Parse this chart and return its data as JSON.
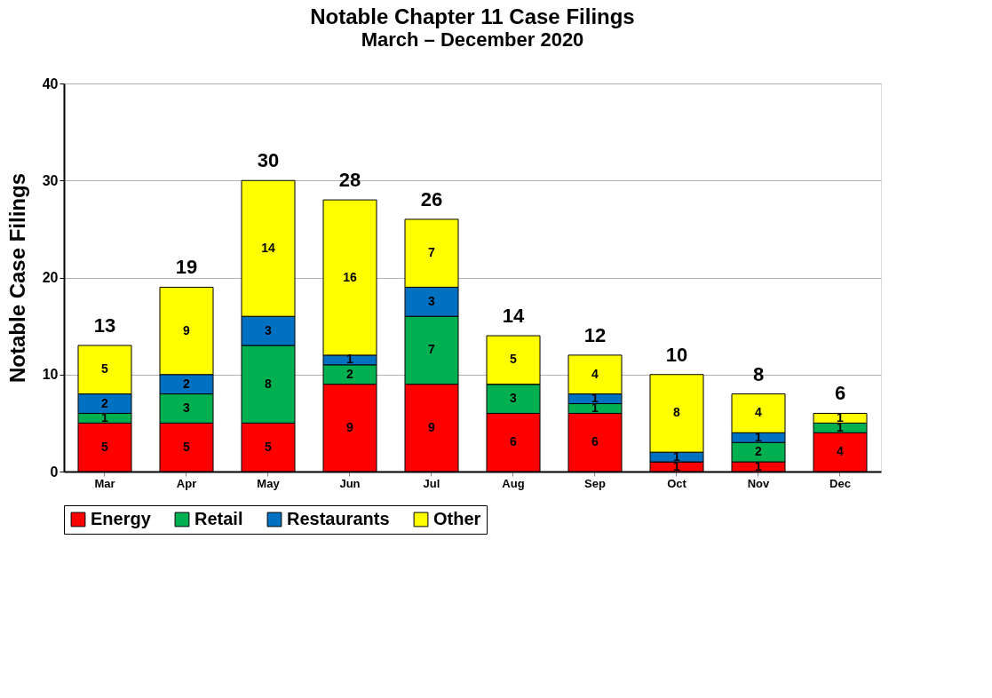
{
  "chart_data": {
    "type": "bar",
    "title": "Notable Chapter 11    Case Filings",
    "subtitle": "March  – December 2020",
    "ylabel": "Notable Case Filings",
    "categories": [
      "Mar",
      "Apr",
      "May",
      "Jun",
      "Jul",
      "Aug",
      "Sep",
      "Oct",
      "Nov",
      "Dec"
    ],
    "series": [
      {
        "name": "Energy",
        "color": "#ff0000",
        "values": [
          5,
          5,
          5,
          9,
          9,
          6,
          6,
          1,
          1,
          4
        ],
        "value_labels": [
          "5",
          "5",
          "5",
          "9",
          "9",
          "6",
          "6",
          "1",
          "1",
          "4"
        ]
      },
      {
        "name": "Retail",
        "color": "#00b050",
        "values": [
          1,
          3,
          8,
          2,
          7,
          3,
          1,
          0,
          2,
          1
        ],
        "value_labels": [
          "1",
          "3",
          "8",
          "2",
          "7",
          "3",
          "1",
          null,
          "2",
          "1"
        ]
      },
      {
        "name": "Restaurants",
        "color": "#0070c0",
        "values": [
          2,
          2,
          3,
          1,
          3,
          0,
          1,
          1,
          1,
          0
        ],
        "value_labels": [
          "2",
          "2",
          "3",
          "1",
          "3",
          null,
          "1",
          "1",
          "1",
          null
        ]
      },
      {
        "name": "Other",
        "color": "#ffff00",
        "values": [
          5,
          9,
          14,
          16,
          7,
          5,
          4,
          8,
          4,
          1
        ],
        "value_labels": [
          "5",
          "9",
          "14",
          "16",
          "7",
          "5",
          "4",
          "8",
          "4",
          "1"
        ]
      }
    ],
    "stacked": true,
    "totals": [
      "13",
      "19",
      "30",
      "28",
      "26",
      "14",
      "12",
      "10",
      "8",
      "6"
    ],
    "ylim": [
      0,
      40
    ],
    "yticks": [
      0,
      10,
      20,
      30,
      40
    ],
    "grid": "y",
    "legend": "bottom"
  }
}
